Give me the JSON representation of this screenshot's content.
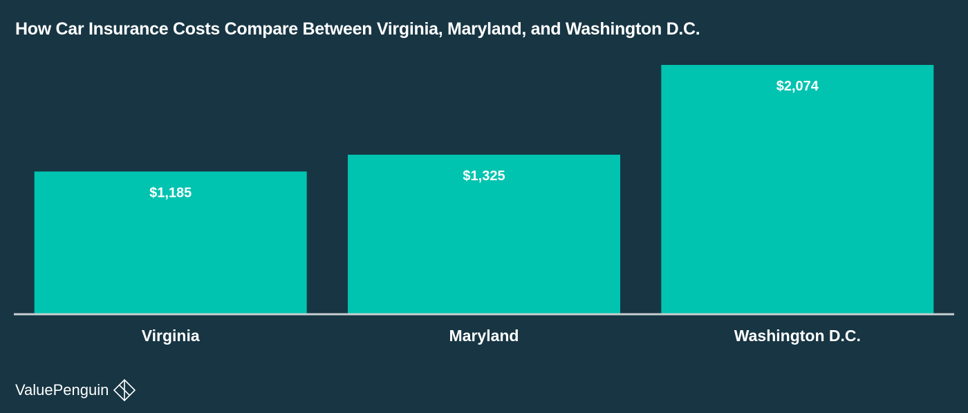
{
  "title": "How Car Insurance Costs Compare Between Virginia, Maryland, and Washington D.C.",
  "brand": {
    "name": "ValuePenguin",
    "icon": "valuepenguin-logo-icon"
  },
  "colors": {
    "background": "#173543",
    "bar": "#00c3b0",
    "axis": "#c8cfd2",
    "text": "#ffffff"
  },
  "chart_data": {
    "type": "bar",
    "title": "How Car Insurance Costs Compare Between Virginia, Maryland, and Washington D.C.",
    "categories": [
      "Virginia",
      "Maryland",
      "Washington D.C."
    ],
    "values": [
      1185,
      1325,
      2074
    ],
    "value_labels": [
      "$1,185",
      "$1,325",
      "$2,074"
    ],
    "xlabel": "",
    "ylabel": "",
    "ylim": [
      0,
      2074
    ],
    "grid": false,
    "legend": "none"
  }
}
